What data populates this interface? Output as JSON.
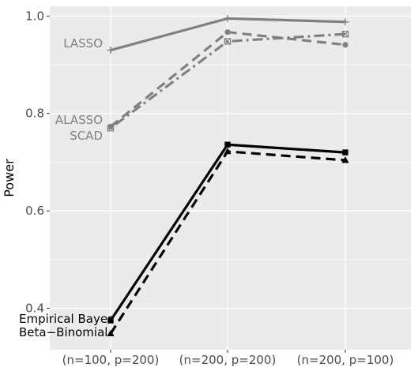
{
  "chart_data": {
    "type": "line",
    "ylabel": "Power",
    "categories": [
      "(n=100, p=200)",
      "(n=200, p=200)",
      "(n=200, p=100)"
    ],
    "ylim": [
      0.315,
      1.02
    ],
    "yticks": [
      0.4,
      0.6,
      0.8,
      1.0
    ],
    "ytick_labels": [
      "0.4",
      "0.6",
      "0.8",
      "1.0"
    ],
    "grid": true,
    "legend": "none",
    "series": [
      {
        "name": "LASSO",
        "values": [
          0.93,
          0.995,
          0.988
        ],
        "color": "#808080",
        "dash": "solid",
        "marker": "plus"
      },
      {
        "name": "ALASSO",
        "values": [
          0.773,
          0.967,
          0.941
        ],
        "color": "#808080",
        "dash": "dashed",
        "marker": "circle"
      },
      {
        "name": "SCAD",
        "values": [
          0.77,
          0.948,
          0.963
        ],
        "color": "#808080",
        "dash": "dotdash",
        "marker": "boxx"
      },
      {
        "name": "Empirical Bayes",
        "values": [
          0.375,
          0.736,
          0.72
        ],
        "color": "#000000",
        "dash": "solid",
        "marker": "square"
      },
      {
        "name": "Beta−Binomial",
        "values": [
          0.348,
          0.722,
          0.704
        ],
        "color": "#000000",
        "dash": "dashed",
        "marker": "triangle"
      }
    ],
    "annotations": [
      {
        "text": "LASSO",
        "series": "LASSO",
        "color": "#808080"
      },
      {
        "text": "ALASSO",
        "series": "ALASSO",
        "color": "#808080"
      },
      {
        "text": "SCAD",
        "series": "SCAD",
        "color": "#808080"
      },
      {
        "text": "Empirical Bayes",
        "series": "Empirical Bayes",
        "color": "#000000"
      },
      {
        "text": "Beta−Binomial",
        "series": "Beta−Binomial",
        "color": "#000000"
      }
    ],
    "colors": {
      "panel": "#EBEBEB",
      "grid": "#FFFFFF",
      "tick_text": "#4D4D4D",
      "axis_title": "#000000"
    }
  }
}
